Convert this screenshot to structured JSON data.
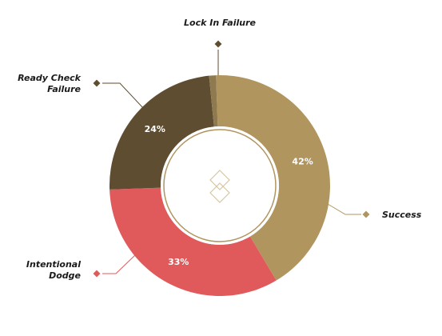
{
  "chart_data": {
    "type": "pie",
    "style": "donut",
    "title": "",
    "categories": [
      "Success",
      "Intentional Dodge",
      "Ready Check Failure",
      "Lock In Failure"
    ],
    "series": [
      {
        "values": [
          42,
          33,
          24,
          1
        ]
      }
    ],
    "value_labels": [
      "42%",
      "33%",
      "24%",
      ""
    ],
    "legend_labels": [
      [
        "Success"
      ],
      [
        "Intentional",
        "Dodge"
      ],
      [
        "Ready Check",
        "Failure"
      ],
      [
        "Lock In Failure"
      ]
    ],
    "colors": [
      "#b0955f",
      "#e05a5c",
      "#5f4d31",
      "#8f7a50"
    ],
    "legend": "callouts",
    "center_icon": "diamond-logo-icon"
  }
}
